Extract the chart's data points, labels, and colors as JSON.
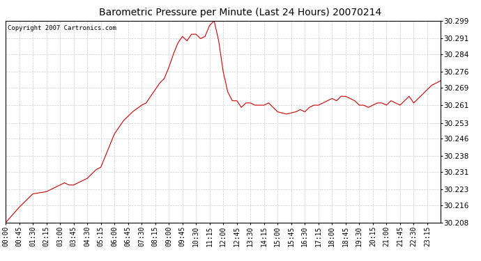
{
  "title": "Barometric Pressure per Minute (Last 24 Hours) 20070214",
  "copyright": "Copyright 2007 Cartronics.com",
  "line_color": "#cc0000",
  "bg_color": "#ffffff",
  "plot_bg_color": "#ffffff",
  "grid_color": "#cccccc",
  "ylim": [
    30.208,
    30.299
  ],
  "yticks": [
    30.208,
    30.216,
    30.223,
    30.231,
    30.238,
    30.246,
    30.253,
    30.261,
    30.269,
    30.276,
    30.284,
    30.291,
    30.299
  ],
  "xtick_labels": [
    "00:00",
    "00:45",
    "01:30",
    "02:15",
    "03:00",
    "03:45",
    "04:30",
    "05:15",
    "06:00",
    "06:45",
    "07:30",
    "08:15",
    "09:00",
    "09:45",
    "10:30",
    "11:15",
    "12:00",
    "12:45",
    "13:30",
    "14:15",
    "15:00",
    "15:45",
    "16:30",
    "17:15",
    "18:00",
    "18:45",
    "19:30",
    "20:15",
    "21:00",
    "21:45",
    "22:30",
    "23:15"
  ],
  "waypoints": [
    [
      0,
      30.208
    ],
    [
      45,
      30.215
    ],
    [
      90,
      30.221
    ],
    [
      135,
      30.222
    ],
    [
      180,
      30.225
    ],
    [
      195,
      30.226
    ],
    [
      210,
      30.225
    ],
    [
      225,
      30.225
    ],
    [
      240,
      30.226
    ],
    [
      270,
      30.228
    ],
    [
      300,
      30.232
    ],
    [
      315,
      30.233
    ],
    [
      360,
      30.248
    ],
    [
      390,
      30.254
    ],
    [
      420,
      30.258
    ],
    [
      450,
      30.261
    ],
    [
      465,
      30.262
    ],
    [
      480,
      30.265
    ],
    [
      495,
      30.268
    ],
    [
      510,
      30.271
    ],
    [
      525,
      30.273
    ],
    [
      540,
      30.278
    ],
    [
      555,
      30.284
    ],
    [
      570,
      30.289
    ],
    [
      585,
      30.292
    ],
    [
      600,
      30.29
    ],
    [
      615,
      30.293
    ],
    [
      630,
      30.293
    ],
    [
      645,
      30.291
    ],
    [
      660,
      30.292
    ],
    [
      675,
      30.297
    ],
    [
      690,
      30.299
    ],
    [
      705,
      30.29
    ],
    [
      720,
      30.276
    ],
    [
      735,
      30.267
    ],
    [
      750,
      30.263
    ],
    [
      765,
      30.263
    ],
    [
      780,
      30.26
    ],
    [
      795,
      30.262
    ],
    [
      810,
      30.262
    ],
    [
      825,
      30.261
    ],
    [
      840,
      30.261
    ],
    [
      855,
      30.261
    ],
    [
      870,
      30.262
    ],
    [
      900,
      30.258
    ],
    [
      930,
      30.257
    ],
    [
      960,
      30.258
    ],
    [
      975,
      30.259
    ],
    [
      990,
      30.258
    ],
    [
      1005,
      30.26
    ],
    [
      1020,
      30.261
    ],
    [
      1035,
      30.261
    ],
    [
      1050,
      30.262
    ],
    [
      1065,
      30.263
    ],
    [
      1080,
      30.264
    ],
    [
      1095,
      30.263
    ],
    [
      1110,
      30.265
    ],
    [
      1125,
      30.265
    ],
    [
      1140,
      30.264
    ],
    [
      1155,
      30.263
    ],
    [
      1170,
      30.261
    ],
    [
      1185,
      30.261
    ],
    [
      1200,
      30.26
    ],
    [
      1215,
      30.261
    ],
    [
      1230,
      30.262
    ],
    [
      1245,
      30.262
    ],
    [
      1260,
      30.261
    ],
    [
      1275,
      30.263
    ],
    [
      1290,
      30.262
    ],
    [
      1305,
      30.261
    ],
    [
      1320,
      30.263
    ],
    [
      1335,
      30.265
    ],
    [
      1350,
      30.262
    ],
    [
      1365,
      30.264
    ],
    [
      1380,
      30.266
    ],
    [
      1395,
      30.268
    ],
    [
      1410,
      30.27
    ],
    [
      1425,
      30.271
    ],
    [
      1439,
      30.272
    ]
  ]
}
